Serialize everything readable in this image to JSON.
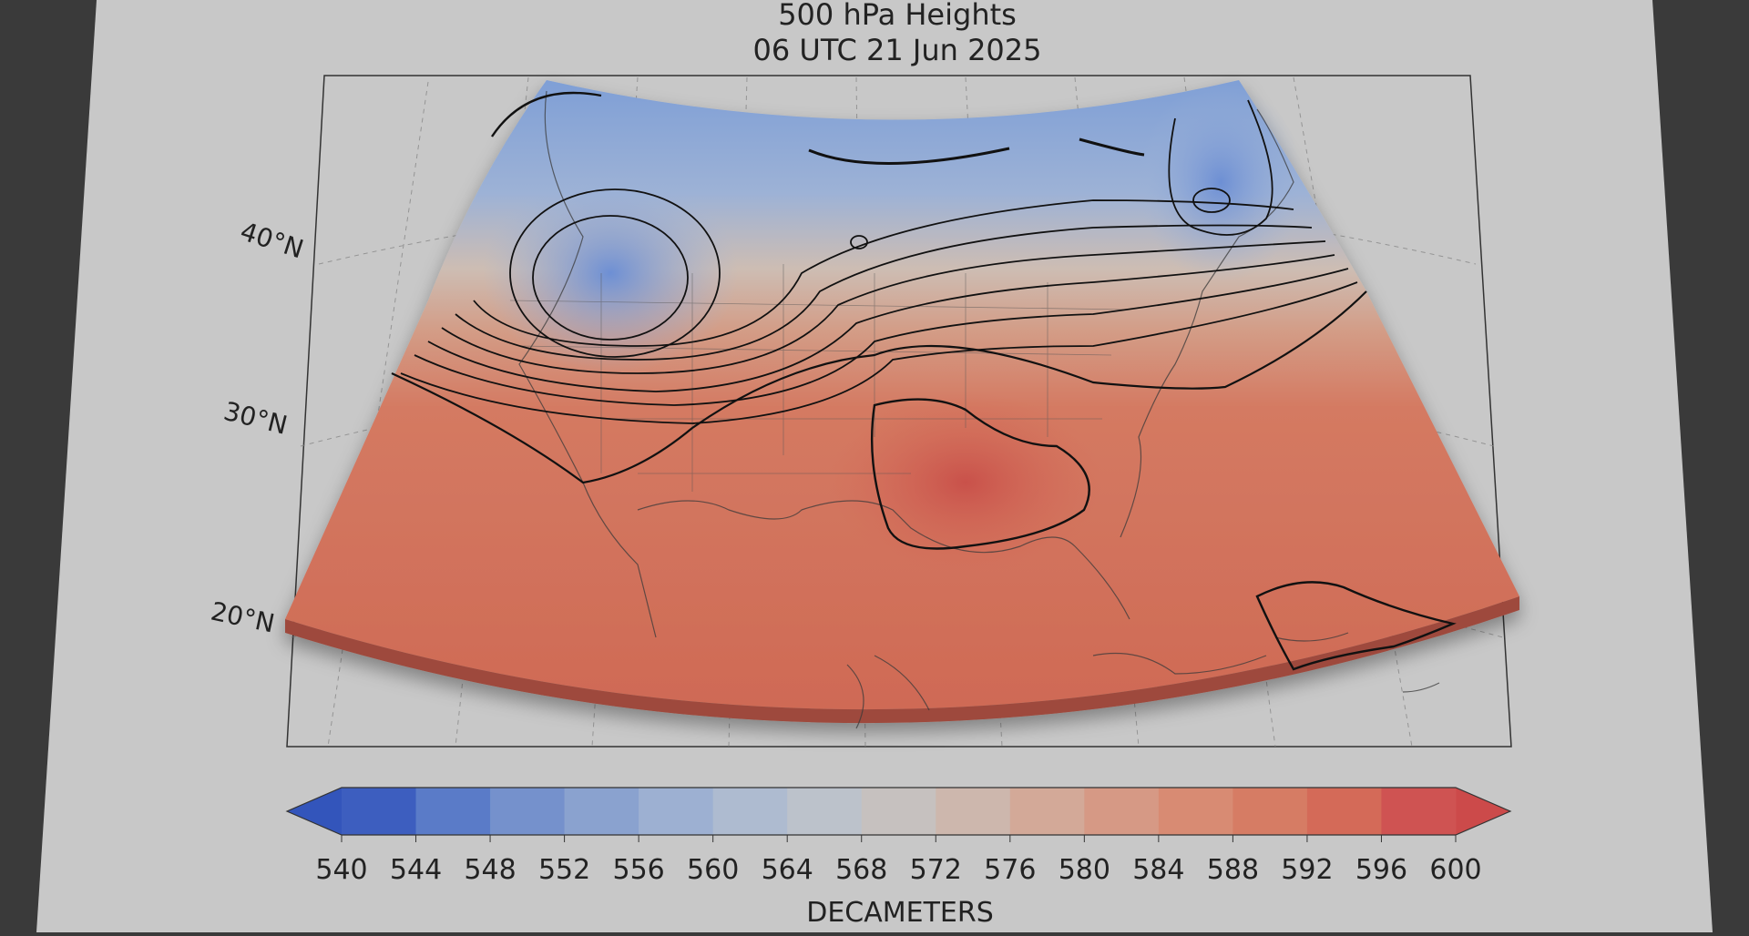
{
  "figure": {
    "title_line1": "500 hPa Heights",
    "title_line2": "06 UTC  21 Jun 2025"
  },
  "map": {
    "lat_labels": [
      {
        "lat": 40,
        "text": "40°N"
      },
      {
        "lat": 30,
        "text": "30°N"
      },
      {
        "lat": 20,
        "text": "20°N"
      }
    ],
    "field": "500 hPa geopotential height",
    "units": "DECAMETERS",
    "features": [
      {
        "name": "upper-low-pacific-northwest",
        "type": "low"
      },
      {
        "name": "upper-low-northeast",
        "type": "low"
      },
      {
        "name": "upper-high-south-central",
        "type": "high",
        "contour": 594
      },
      {
        "name": "upper-high-caribbean",
        "type": "high",
        "contour": 594
      }
    ]
  },
  "colorbar": {
    "label": "DECAMETERS",
    "ticks": [
      540,
      544,
      548,
      552,
      556,
      560,
      564,
      568,
      572,
      576,
      580,
      584,
      588,
      592,
      596,
      600
    ],
    "colors": [
      "#3d5ebf",
      "#5a7bc8",
      "#7591cc",
      "#8aa2cf",
      "#9db0d2",
      "#aebbd0",
      "#bcc2cb",
      "#c6c1bf",
      "#cdb7ad",
      "#d3a998",
      "#d69985",
      "#d88b73",
      "#d67c64",
      "#d46a58",
      "#cf5352"
    ],
    "extend_low_color": "#3355bb",
    "extend_high_color": "#cc4a4a"
  }
}
